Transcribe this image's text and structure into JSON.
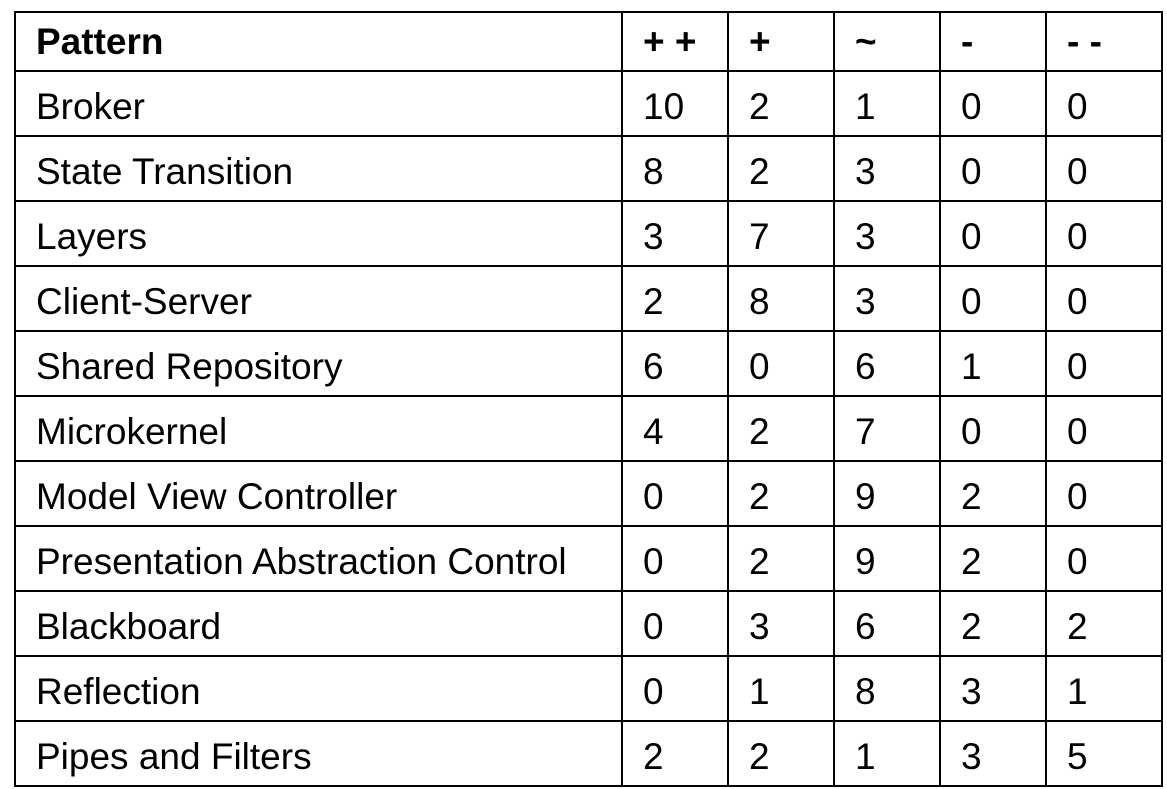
{
  "table": {
    "headers": [
      "Pattern",
      "+ +",
      "+",
      "~",
      "-",
      "- -"
    ],
    "rows": [
      {
        "pattern": "Broker",
        "values": [
          "10",
          "2",
          "1",
          "0",
          "0"
        ]
      },
      {
        "pattern": "State Transition",
        "values": [
          "8",
          "2",
          "3",
          "0",
          "0"
        ]
      },
      {
        "pattern": "Layers",
        "values": [
          "3",
          "7",
          "3",
          "0",
          "0"
        ]
      },
      {
        "pattern": "Client-Server",
        "values": [
          "2",
          "8",
          "3",
          "0",
          "0"
        ]
      },
      {
        "pattern": "Shared Repository",
        "values": [
          "6",
          "0",
          "6",
          "1",
          "0"
        ]
      },
      {
        "pattern": "Microkernel",
        "values": [
          "4",
          "2",
          "7",
          "0",
          "0"
        ]
      },
      {
        "pattern": "Model View Controller",
        "values": [
          "0",
          "2",
          "9",
          "2",
          "0"
        ]
      },
      {
        "pattern": "Presentation Abstraction Control",
        "values": [
          "0",
          "2",
          "9",
          "2",
          "0"
        ]
      },
      {
        "pattern": "Blackboard",
        "values": [
          "0",
          "3",
          "6",
          "2",
          "2"
        ]
      },
      {
        "pattern": "Reflection",
        "values": [
          "0",
          "1",
          "8",
          "3",
          "1"
        ]
      },
      {
        "pattern": "Pipes and Filters",
        "values": [
          "2",
          "2",
          "1",
          "3",
          "5"
        ]
      }
    ]
  }
}
